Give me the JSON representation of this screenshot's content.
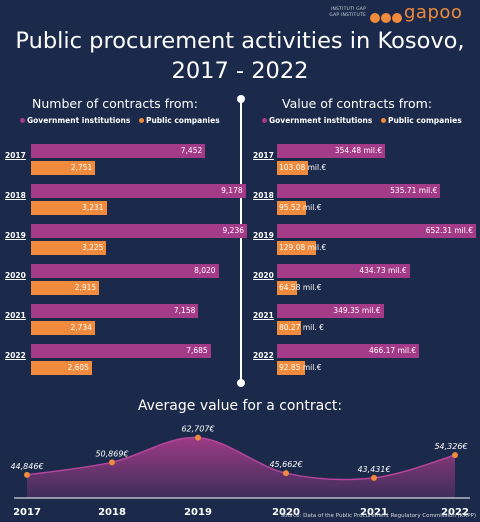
{
  "logo": {
    "small_text": [
      "INSTITUTI GAP",
      "GAP INSTITUTE"
    ],
    "wordmark": "gapoo"
  },
  "title_lines": [
    "Public procurement activities in Kosovo,",
    "2017 - 2022"
  ],
  "left_title": "Number of contracts from:",
  "right_title": "Value of contracts from:",
  "legend": {
    "gov": "Government institutions",
    "pub": "Public companies"
  },
  "colors": {
    "background": "#1b2a4a",
    "gov": "#a43b89",
    "pub": "#f08a3c",
    "area": "#a43b89"
  },
  "avg_title": "Average value for a contract:",
  "source": "Source: Data of the Public Procurement Regulatory Commission (KRPP)",
  "chart_data": [
    {
      "type": "bar",
      "title": "Number of contracts from:",
      "categories": [
        "2017",
        "2018",
        "2019",
        "2020",
        "2021",
        "2022"
      ],
      "series": [
        {
          "name": "Government institutions",
          "values": [
            7452,
            9178,
            9236,
            8020,
            7158,
            7685
          ],
          "labels": [
            "7,452",
            "9,178",
            "9,236",
            "8,020",
            "7,158",
            "7,685"
          ]
        },
        {
          "name": "Public companies",
          "values": [
            2751,
            3231,
            3225,
            2915,
            2734,
            2605
          ],
          "labels": [
            "2,751",
            "3,231",
            "3,225",
            "2,915",
            "2,734",
            "2,605"
          ]
        }
      ]
    },
    {
      "type": "bar",
      "title": "Value of contracts from:",
      "categories": [
        "2017",
        "2018",
        "2019",
        "2020",
        "2021",
        "2022"
      ],
      "series": [
        {
          "name": "Government institutions",
          "values": [
            354.48,
            535.71,
            652.31,
            434.73,
            349.35,
            466.17
          ],
          "labels": [
            "354.48 mil.€",
            "535.71 mil.€",
            "652.31 mil.€",
            "434.73 mil.€",
            "349.35 mil.€",
            "466.17 mil.€"
          ]
        },
        {
          "name": "Public companies",
          "values": [
            103.08,
            95.52,
            129.08,
            64.58,
            80.27,
            92.85
          ],
          "labels": [
            "103.08 mil.€",
            "95.52 mil.€",
            "129.08 mil.€",
            "64.58 mil.€",
            "80.27 mil. €",
            "92.85 mil.€"
          ]
        }
      ]
    },
    {
      "type": "area",
      "title": "Average value for a contract:",
      "x": [
        "2017",
        "2018",
        "2019",
        "2020",
        "2021",
        "2022"
      ],
      "values": [
        44846,
        50869,
        62707,
        45662,
        43431,
        54326
      ],
      "labels": [
        "44,846€",
        "50,869€",
        "62,707€",
        "45,662€",
        "43,431€",
        "54,326€"
      ]
    }
  ]
}
